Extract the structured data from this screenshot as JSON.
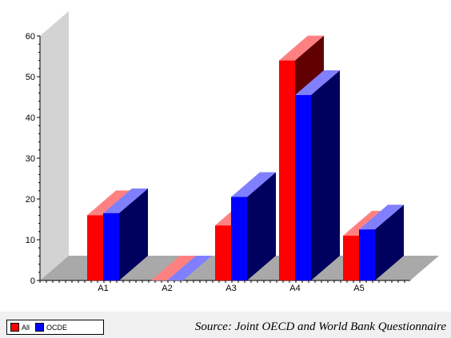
{
  "chart_data": {
    "type": "bar",
    "categories": [
      "A1",
      "A2",
      "A3",
      "A4",
      "A5"
    ],
    "series": [
      {
        "name": "All",
        "values": [
          16,
          0,
          13.5,
          54,
          11
        ]
      },
      {
        "name": "OCDE",
        "values": [
          16.5,
          0,
          20.5,
          45.5,
          12.5
        ]
      }
    ],
    "ylim": [
      0,
      60
    ],
    "yticks": [
      0,
      10,
      20,
      30,
      40,
      50,
      60
    ],
    "legend_position": "bottom-left",
    "colors": {
      "All": {
        "front": "#ff0000",
        "top": "#ff8080",
        "side": "#600000"
      },
      "OCDE": {
        "front": "#0000ff",
        "top": "#8080ff",
        "side": "#00005e"
      },
      "wall": "#d3d3d3",
      "floor": "#a9a9a9"
    }
  },
  "legend": {
    "items": [
      {
        "label": "All",
        "color": "#ff0000"
      },
      {
        "label": "OCDE",
        "color": "#0000ff"
      }
    ]
  },
  "source_text": "Source: Joint OECD and World Bank Questionnaire"
}
